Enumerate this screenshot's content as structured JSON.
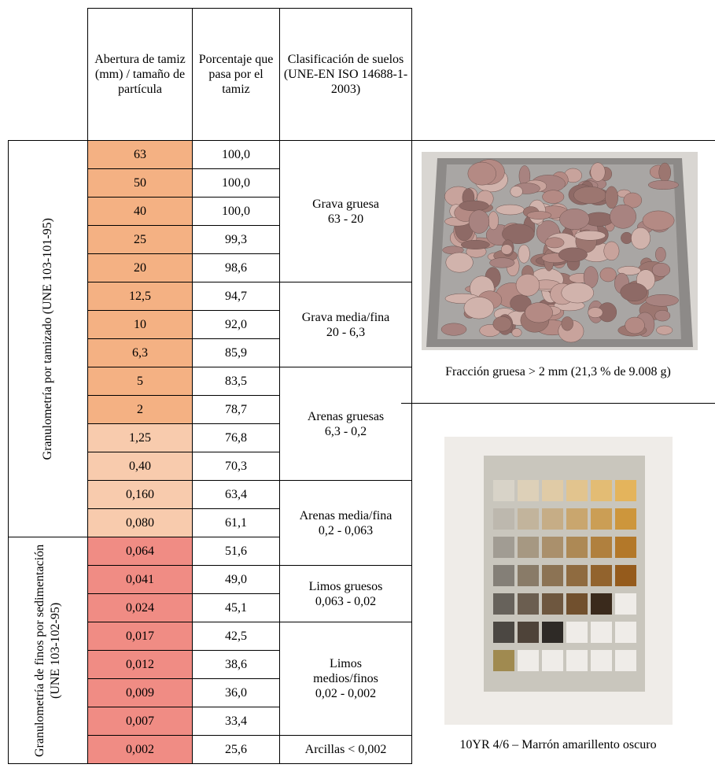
{
  "table": {
    "header": [
      "Abertura de tamiz (mm) / tamaño de partícula",
      "Porcentaje que pasa por el tamiz",
      "Clasificación de suelos (UNE-EN ISO 14688-1-2003)"
    ],
    "methods": [
      "Granulometría  por tamizado (UNE 103-101-95)",
      "Granulometría de finos por sedimentación (UNE 103-102-95)"
    ],
    "classes": [
      {
        "name": "Grava gruesa",
        "range": "63 - 20"
      },
      {
        "name": "Grava media/fina",
        "range": "20 - 6,3"
      },
      {
        "name": "Arenas gruesas",
        "range": "6,3 - 0,2"
      },
      {
        "name": "Arenas media/fina",
        "range": "0,2 - 0,063"
      },
      {
        "name": "Limos gruesos",
        "range": "0,063 - 0,02"
      },
      {
        "name": "Limos medios/finos",
        "range": "0,02 - 0,002"
      },
      {
        "name": "Arcillas < 0,002"
      }
    ],
    "rows": [
      [
        "63",
        "100,0"
      ],
      [
        "50",
        "100,0"
      ],
      [
        "40",
        "100,0"
      ],
      [
        "25",
        "99,3"
      ],
      [
        "20",
        "98,6"
      ],
      [
        "12,5",
        "94,7"
      ],
      [
        "10",
        "92,0"
      ],
      [
        "6,3",
        "85,9"
      ],
      [
        "5",
        "83,5"
      ],
      [
        "2",
        "78,7"
      ],
      [
        "1,25",
        "76,8"
      ],
      [
        "0,40",
        "70,3"
      ],
      [
        "0,160",
        "63,4"
      ],
      [
        "0,080",
        "61,1"
      ],
      [
        "0,064",
        "51,6"
      ],
      [
        "0,041",
        "49,0"
      ],
      [
        "0,024",
        "45,1"
      ],
      [
        "0,017",
        "42,5"
      ],
      [
        "0,012",
        "38,6"
      ],
      [
        "0,009",
        "36,0"
      ],
      [
        "0,007",
        "33,4"
      ],
      [
        "0,002",
        "25,6"
      ]
    ]
  },
  "figures": [
    {
      "caption": "Fracción gruesa > 2 mm (21,3 % de 9.008 g)"
    },
    {
      "caption": "10YR 4/6 – Marrón amarillento oscuro"
    }
  ]
}
